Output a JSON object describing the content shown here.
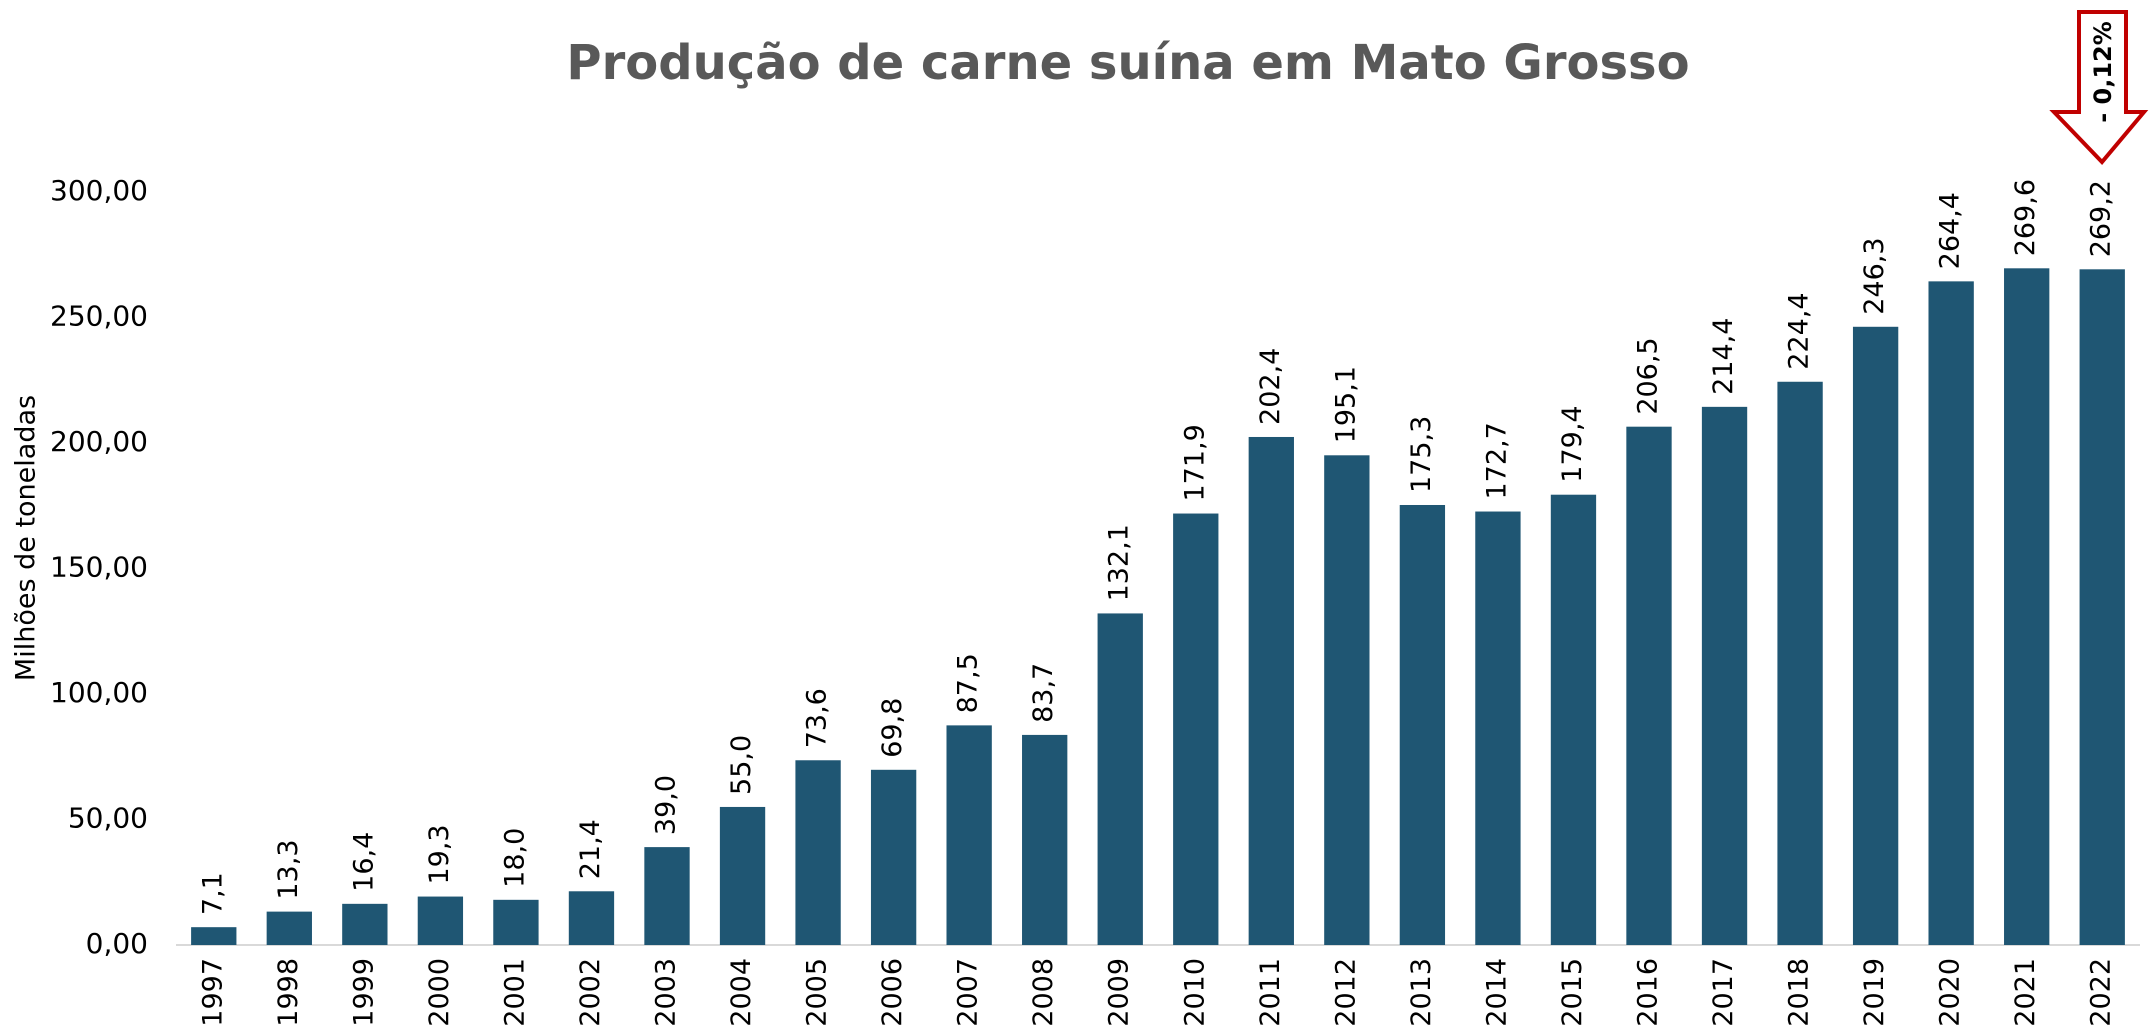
{
  "chart_data": {
    "type": "bar",
    "title": "Produção de carne suína em Mato Grosso",
    "y_label": "Milhões de toneladas",
    "annotation": "- 0,12%",
    "categories": [
      "1997",
      "1998",
      "1999",
      "2000",
      "2001",
      "2002",
      "2003",
      "2004",
      "2005",
      "2006",
      "2007",
      "2008",
      "2009",
      "2010",
      "2011",
      "2012",
      "2013",
      "2014",
      "2015",
      "2016",
      "2017",
      "2018",
      "2019",
      "2020",
      "2021",
      "2022"
    ],
    "values": [
      7.1,
      13.3,
      16.4,
      19.3,
      18.0,
      21.4,
      39.0,
      55.0,
      73.6,
      69.8,
      87.5,
      83.7,
      132.1,
      171.9,
      202.4,
      195.1,
      175.3,
      172.7,
      179.4,
      206.5,
      214.4,
      224.4,
      246.3,
      264.4,
      269.6,
      269.2
    ],
    "value_labels": [
      "7,1",
      "13,3",
      "16,4",
      "19,3",
      "18,0",
      "21,4",
      "39,0",
      "55,0",
      "73,6",
      "69,8",
      "87,5",
      "83,7",
      "132,1",
      "171,9",
      "202,4",
      "195,1",
      "175,3",
      "172,7",
      "179,4",
      "206,5",
      "214,4",
      "224,4",
      "246,3",
      "264,4",
      "269,6",
      "269,2"
    ],
    "color": "#1f5673",
    "ylim": [
      0,
      300
    ],
    "yticks": [
      {
        "value": 0,
        "label": "0,00"
      },
      {
        "value": 50,
        "label": "50,00"
      },
      {
        "value": 100,
        "label": "100,00"
      },
      {
        "value": 150,
        "label": "150,00"
      },
      {
        "value": 200,
        "label": "200,00"
      },
      {
        "value": 250,
        "label": "250,00"
      },
      {
        "value": 300,
        "label": "300,00"
      }
    ],
    "grid": false
  }
}
